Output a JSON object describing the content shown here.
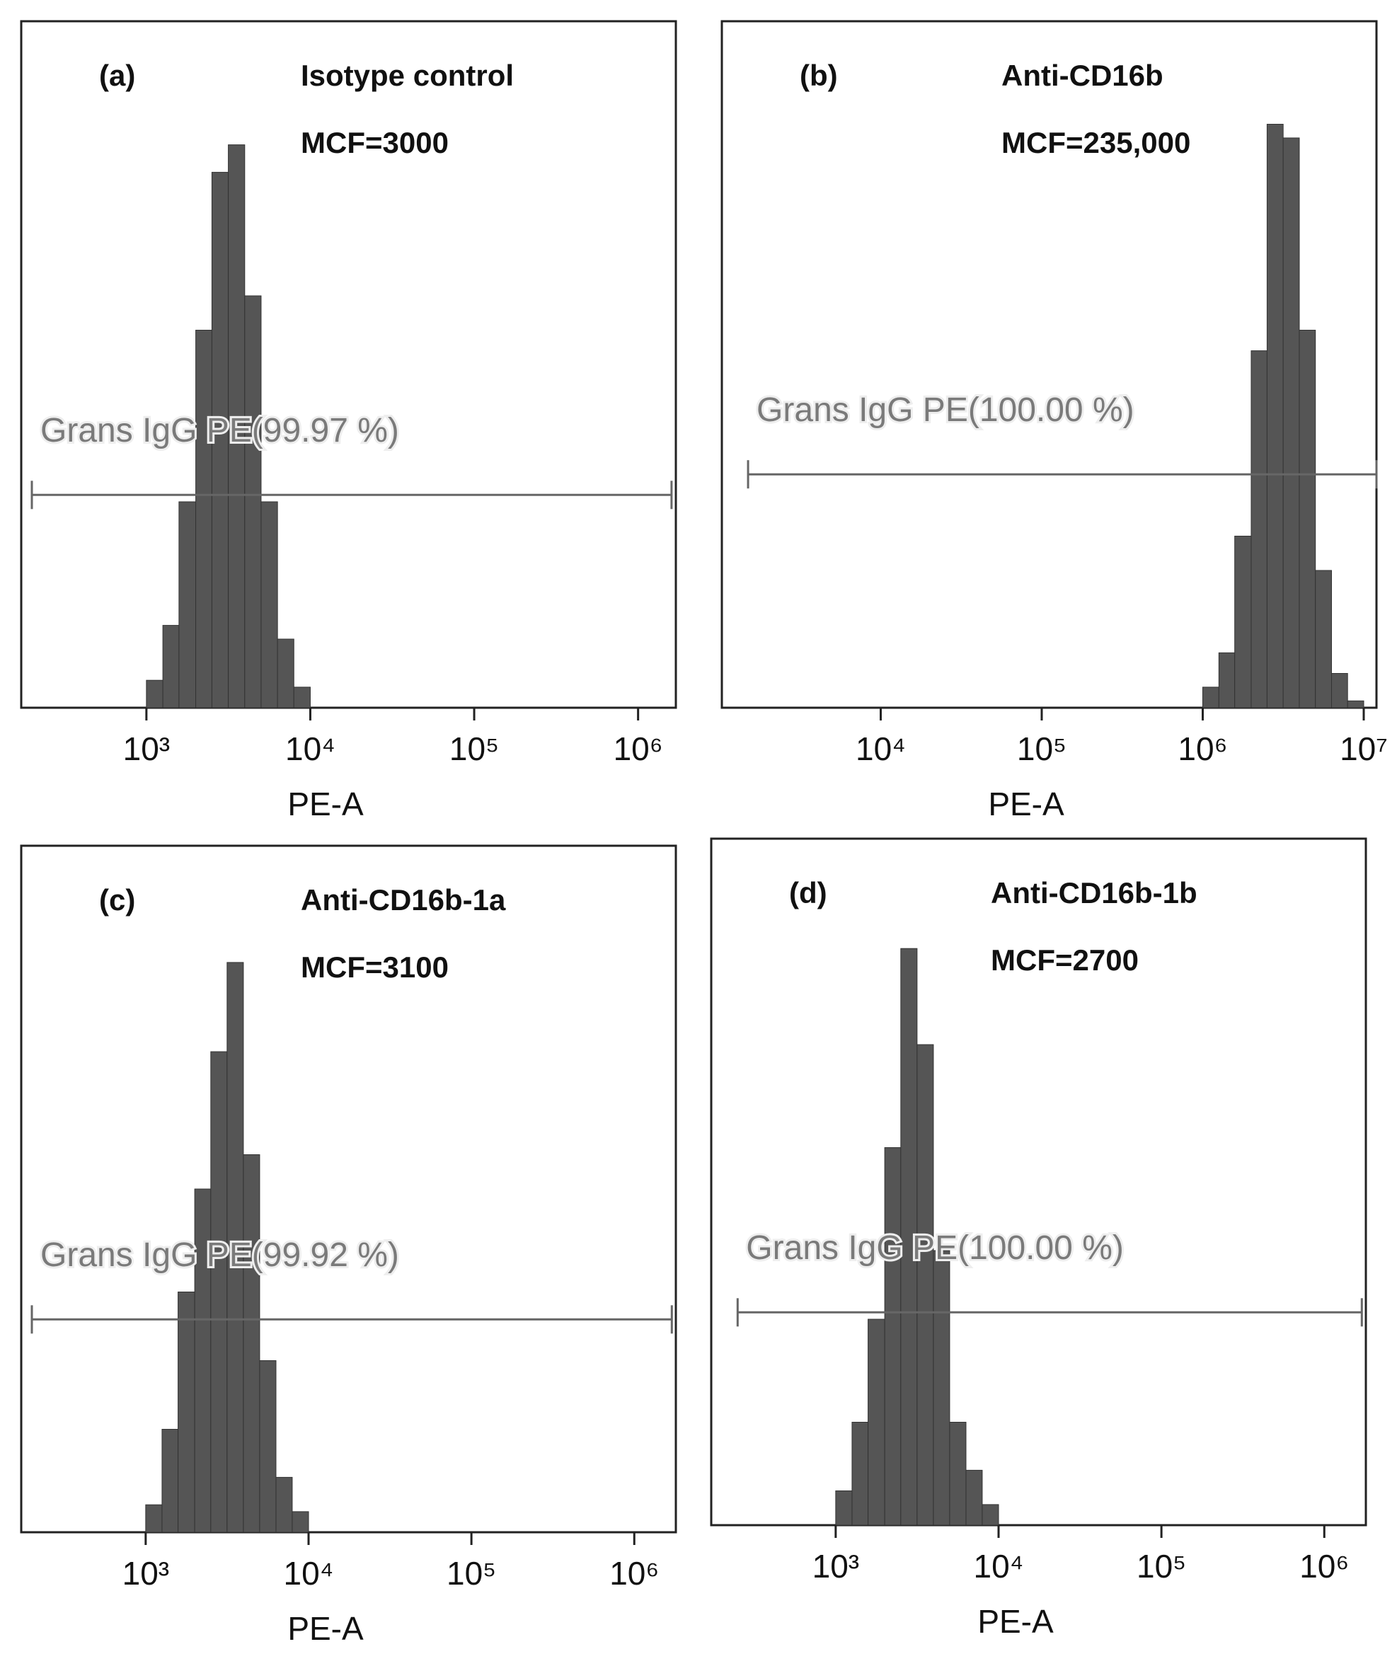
{
  "chart_data": [
    {
      "type": "histogram",
      "panel": "(a)",
      "annotations": [
        "Isotype control",
        "MCF=3000"
      ],
      "xlabel": "PE-A",
      "xscale": "log",
      "xlim": [
        200,
        1700000
      ],
      "xticks": [
        {
          "value": 1000,
          "label": "10³"
        },
        {
          "value": 10000,
          "label": "10⁴"
        },
        {
          "value": 100000,
          "label": "10⁵"
        },
        {
          "value": 1000000,
          "label": "10⁶"
        }
      ],
      "ylim": [
        0,
        100
      ],
      "color": "#555555",
      "bins": [
        1000,
        1260,
        1580,
        2000,
        2510,
        3160,
        3980,
        5010,
        6310,
        7940,
        10000
      ],
      "counts": [
        4,
        12,
        30,
        55,
        78,
        82,
        60,
        30,
        10,
        3
      ],
      "gate": {
        "label": "Grans IgG PE(99.97 %)",
        "range": [
          200,
          1600000
        ],
        "y": 31
      }
    },
    {
      "type": "histogram",
      "panel": "(b)",
      "annotations": [
        "Anti-CD16b",
        "MCF=235,000"
      ],
      "xlabel": "PE-A",
      "xscale": "log",
      "xlim": [
        1200,
        12000000
      ],
      "xticks": [
        {
          "value": 10000,
          "label": "10⁴"
        },
        {
          "value": 100000,
          "label": "10⁵"
        },
        {
          "value": 1000000,
          "label": "10⁶"
        },
        {
          "value": 10000000,
          "label": "10⁷"
        }
      ],
      "ylim": [
        0,
        100
      ],
      "color": "#555555",
      "bins": [
        1000000,
        1260000,
        1580000,
        2000000,
        2510000,
        3160000,
        3980000,
        5010000,
        6310000,
        7940000,
        10000000
      ],
      "counts": [
        3,
        8,
        25,
        52,
        85,
        83,
        55,
        20,
        5,
        1
      ],
      "gate": {
        "label": "Grans IgG PE(100.00 %)",
        "range": [
          1500,
          12000000
        ],
        "y": 34
      }
    },
    {
      "type": "histogram",
      "panel": "(c)",
      "annotations": [
        "Anti-CD16b-1a",
        "MCF=3100"
      ],
      "xlabel": "PE-A",
      "xscale": "log",
      "xlim": [
        200,
        1800000
      ],
      "xticks": [
        {
          "value": 1000,
          "label": "10³"
        },
        {
          "value": 10000,
          "label": "10⁴"
        },
        {
          "value": 100000,
          "label": "10⁵"
        },
        {
          "value": 1000000,
          "label": "10⁶"
        }
      ],
      "ylim": [
        0,
        100
      ],
      "color": "#555555",
      "bins": [
        1000,
        1260,
        1580,
        2000,
        2510,
        3160,
        3980,
        5010,
        6310,
        7940,
        10000
      ],
      "counts": [
        4,
        15,
        35,
        50,
        70,
        83,
        55,
        25,
        8,
        3
      ],
      "gate": {
        "label": "Grans IgG PE(99.92 %)",
        "range": [
          200,
          1700000
        ],
        "y": 31
      }
    },
    {
      "type": "histogram",
      "panel": "(d)",
      "annotations": [
        "Anti-CD16b-1b",
        "MCF=2700"
      ],
      "xlabel": "PE-A",
      "xscale": "log",
      "xlim": [
        200,
        1800000
      ],
      "xticks": [
        {
          "value": 1000,
          "label": "10³"
        },
        {
          "value": 10000,
          "label": "10⁴"
        },
        {
          "value": 100000,
          "label": "10⁵"
        },
        {
          "value": 1000000,
          "label": "10⁶"
        }
      ],
      "ylim": [
        0,
        100
      ],
      "color": "#555555",
      "bins": [
        1000,
        1260,
        1580,
        2000,
        2510,
        3160,
        3980,
        5010,
        6310,
        7940,
        10000
      ],
      "counts": [
        5,
        15,
        30,
        55,
        84,
        70,
        40,
        15,
        8,
        3
      ],
      "gate": {
        "label": "Grans IgG PE(100.00 %)",
        "range": [
          250,
          1700000
        ],
        "y": 31
      }
    }
  ]
}
